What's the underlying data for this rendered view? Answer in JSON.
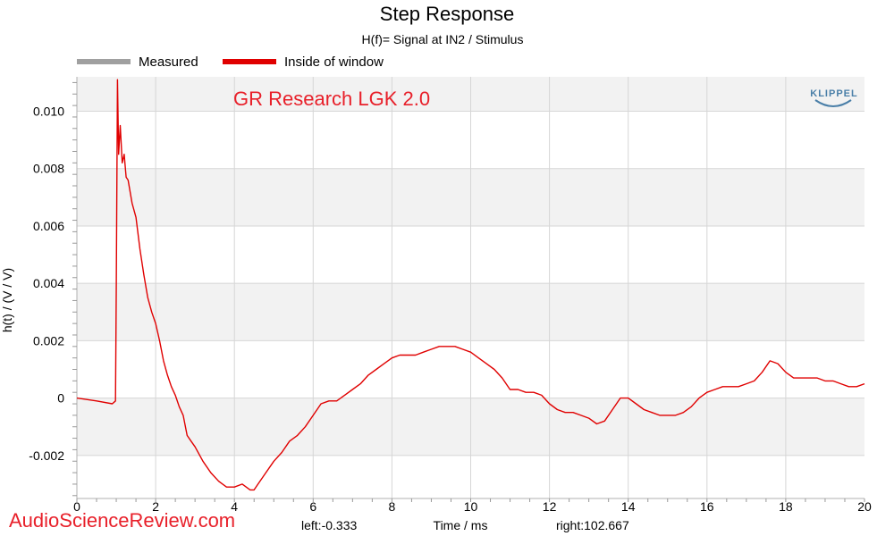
{
  "chart_data": {
    "type": "line",
    "title": "Step Response",
    "subtitle": "H(f)= Signal at IN2 / Stimulus",
    "xlabel": "Time / ms",
    "ylabel": "h(t) / (V / V)",
    "xlim": [
      0,
      20
    ],
    "ylim": [
      -0.0035,
      0.0112
    ],
    "x_ticks": [
      0,
      2,
      4,
      6,
      8,
      10,
      12,
      14,
      16,
      18,
      20
    ],
    "x_tick_labels": [
      "0",
      "2",
      "4",
      "6",
      "8",
      "10",
      "12",
      "14",
      "16",
      "18",
      "20"
    ],
    "y_ticks": [
      -0.002,
      0,
      0.002,
      0.004,
      0.006,
      0.008,
      0.01
    ],
    "y_tick_labels": [
      "-0.002",
      "0",
      "0.002",
      "0.004",
      "0.006",
      "0.008",
      "0.010"
    ],
    "grid": true,
    "legend_position": "top-left",
    "legend": [
      {
        "name": "Measured",
        "color": "#a0a0a0"
      },
      {
        "name": "Inside of window",
        "color": "#e00000"
      }
    ],
    "annotation": "GR Research LGK 2.0",
    "annotation_color": "#e8202a",
    "series": [
      {
        "name": "Inside of window",
        "color": "#e00000",
        "x": [
          0,
          0.5,
          0.9,
          0.98,
          1.0,
          1.03,
          1.06,
          1.1,
          1.15,
          1.2,
          1.25,
          1.3,
          1.4,
          1.5,
          1.6,
          1.7,
          1.8,
          1.9,
          2.0,
          2.1,
          2.2,
          2.3,
          2.4,
          2.5,
          2.6,
          2.7,
          2.8,
          2.9,
          3.0,
          3.2,
          3.4,
          3.6,
          3.8,
          4.0,
          4.2,
          4.4,
          4.5,
          4.6,
          4.8,
          5.0,
          5.2,
          5.4,
          5.6,
          5.8,
          6.0,
          6.2,
          6.4,
          6.6,
          6.8,
          7.0,
          7.2,
          7.4,
          7.6,
          7.8,
          8.0,
          8.2,
          8.4,
          8.6,
          8.8,
          9.0,
          9.2,
          9.4,
          9.6,
          9.8,
          10.0,
          10.2,
          10.4,
          10.6,
          10.8,
          11.0,
          11.2,
          11.4,
          11.6,
          11.8,
          12.0,
          12.2,
          12.4,
          12.6,
          12.8,
          13.0,
          13.2,
          13.4,
          13.6,
          13.8,
          14.0,
          14.2,
          14.4,
          14.6,
          14.8,
          15.0,
          15.2,
          15.4,
          15.6,
          15.8,
          16.0,
          16.2,
          16.4,
          16.6,
          16.8,
          17.0,
          17.2,
          17.4,
          17.6,
          17.8,
          18.0,
          18.2,
          18.4,
          18.6,
          18.8,
          19.0,
          19.2,
          19.4,
          19.6,
          19.8,
          20.0
        ],
        "values": [
          0.0,
          -0.0001,
          -0.0002,
          -0.0001,
          0.004,
          0.0111,
          0.0085,
          0.0095,
          0.0082,
          0.0085,
          0.0077,
          0.0076,
          0.0068,
          0.0063,
          0.0052,
          0.0043,
          0.0035,
          0.003,
          0.0026,
          0.002,
          0.0013,
          0.0008,
          0.0004,
          0.0001,
          -0.0003,
          -0.0006,
          -0.0013,
          -0.0015,
          -0.0017,
          -0.0022,
          -0.0026,
          -0.0029,
          -0.0031,
          -0.0031,
          -0.003,
          -0.0032,
          -0.0032,
          -0.003,
          -0.0026,
          -0.0022,
          -0.0019,
          -0.0015,
          -0.0013,
          -0.001,
          -0.0006,
          -0.0002,
          -0.0001,
          -0.0001,
          0.0001,
          0.0003,
          0.0005,
          0.0008,
          0.001,
          0.0012,
          0.0014,
          0.0015,
          0.0015,
          0.0015,
          0.0016,
          0.0017,
          0.0018,
          0.0018,
          0.0018,
          0.0017,
          0.0016,
          0.0014,
          0.0012,
          0.001,
          0.0007,
          0.0003,
          0.0003,
          0.0002,
          0.0002,
          0.0001,
          -0.0002,
          -0.0004,
          -0.0005,
          -0.0005,
          -0.0006,
          -0.0007,
          -0.0009,
          -0.0008,
          -0.0004,
          0.0,
          0.0,
          -0.0002,
          -0.0004,
          -0.0005,
          -0.0006,
          -0.0006,
          -0.0006,
          -0.0005,
          -0.0003,
          0.0,
          0.0002,
          0.0003,
          0.0004,
          0.0004,
          0.0004,
          0.0005,
          0.0006,
          0.0009,
          0.0013,
          0.0012,
          0.0009,
          0.0007,
          0.0007,
          0.0007,
          0.0007,
          0.0006,
          0.0006,
          0.0005,
          0.0004,
          0.0004,
          0.0005
        ]
      }
    ]
  },
  "footer": {
    "left": "left:-0.333",
    "center": "Time / ms",
    "right": "right:102.667"
  },
  "logo": "KLIPPEL",
  "logo_color": "#4a7fa8",
  "watermark": "AudioScienceReview.com",
  "watermark_color": "#e8202a"
}
